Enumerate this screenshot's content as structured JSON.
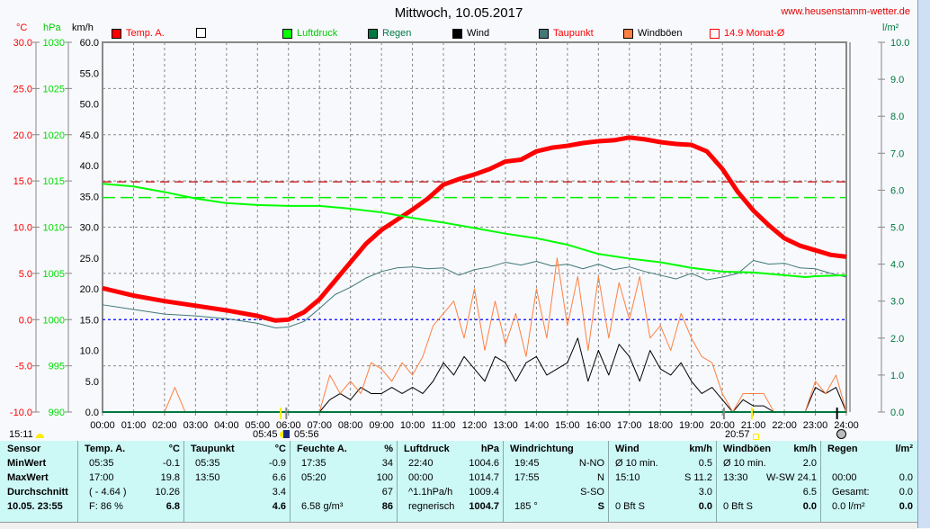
{
  "header": {
    "title": "Mittwoch, 10.05.2017",
    "site": "www.heusenstamm-wetter.de"
  },
  "units": {
    "temp": "°C",
    "pressure": "hPa",
    "wind": "km/h",
    "rain": "l/m²"
  },
  "legend": [
    {
      "label": "Temp. A.",
      "color": "#ff0000",
      "text_color": "#ff0000"
    },
    {
      "label": "",
      "color": "#ffffff",
      "text_color": "#000000"
    },
    {
      "label": "Luftdruck",
      "color": "#00ff00",
      "text_color": "#00cc00"
    },
    {
      "label": "Regen",
      "color": "#007840",
      "text_color": "#007840"
    },
    {
      "label": "Wind",
      "color": "#000000",
      "text_color": "#000000"
    },
    {
      "label": "Taupunkt",
      "color": "#407878",
      "text_color": "#ff0000"
    },
    {
      "label": "Windböen",
      "color": "#ff8040",
      "text_color": "#000000"
    },
    {
      "label": "14.9 Monat-Ø",
      "color": "#ff0000",
      "text_color": "#ff0000"
    }
  ],
  "chart_data": {
    "type": "line",
    "x_ticks": [
      "00:00",
      "01:00",
      "02:00",
      "03:00",
      "04:00",
      "05:00",
      "06:00",
      "07:00",
      "08:00",
      "09:00",
      "10:00",
      "11:00",
      "12:00",
      "13:00",
      "14:00",
      "15:00",
      "16:00",
      "17:00",
      "18:00",
      "19:00",
      "20:00",
      "21:00",
      "22:00",
      "23:00",
      "24:00"
    ],
    "temp_ticks": [
      "30.0",
      "25.0",
      "20.0",
      "15.0",
      "10.0",
      "5.0",
      "0.0",
      "-5.0",
      "-10.0"
    ],
    "pressure_ticks": [
      "1030",
      "1025",
      "1020",
      "1015",
      "1010",
      "1005",
      "1000",
      "995",
      "990"
    ],
    "wind_ticks": [
      "60.0",
      "55.0",
      "50.0",
      "45.0",
      "40.0",
      "35.0",
      "30.0",
      "25.0",
      "20.0",
      "15.0",
      "10.0",
      "5.0",
      "0.0"
    ],
    "rain_ticks": [
      "10.0",
      "9.0",
      "8.0",
      "7.0",
      "6.0",
      "5.0",
      "4.0",
      "3.0",
      "2.0",
      "1.0",
      "0.0"
    ],
    "ylim_temp": [
      -10,
      30
    ],
    "ylim_pressure": [
      990,
      1030
    ],
    "ylim_wind": [
      0,
      60
    ],
    "ylim_rain": [
      0,
      10
    ],
    "grid": true,
    "monthly_avg_temp": 14.9,
    "pressure_reference": 1013.2,
    "series": [
      {
        "name": "Temp. A.",
        "color": "#ff0000",
        "x": [
          0,
          1,
          2,
          3,
          4,
          5,
          5.58,
          6,
          6.5,
          7,
          7.5,
          8,
          8.5,
          9,
          9.5,
          10,
          10.5,
          11,
          11.5,
          12,
          12.5,
          13,
          13.5,
          14,
          14.5,
          15,
          15.5,
          16,
          16.5,
          17,
          17.5,
          18,
          18.5,
          19,
          19.5,
          20,
          20.5,
          21,
          21.5,
          22,
          22.5,
          23,
          23.5,
          24
        ],
        "y": [
          3.4,
          2.6,
          2.0,
          1.5,
          1.0,
          0.4,
          -0.1,
          0.0,
          0.8,
          2.2,
          4.2,
          6.2,
          8.2,
          9.7,
          10.8,
          11.9,
          13.1,
          14.6,
          15.2,
          15.7,
          16.3,
          17.1,
          17.3,
          18.2,
          18.6,
          18.8,
          19.1,
          19.3,
          19.4,
          19.7,
          19.5,
          19.2,
          19.0,
          18.9,
          18.2,
          16.3,
          13.8,
          11.8,
          10.2,
          8.8,
          8.0,
          7.5,
          7.0,
          6.8
        ]
      },
      {
        "name": "Taupunkt",
        "color": "#407878",
        "x": [
          0,
          1,
          2,
          3,
          4,
          5,
          5.58,
          6,
          6.5,
          7,
          7.5,
          8,
          8.5,
          9,
          9.5,
          10,
          10.5,
          11,
          11.5,
          12,
          12.5,
          13,
          13.5,
          14,
          14.5,
          15,
          15.5,
          16,
          16.5,
          17,
          17.5,
          18,
          18.5,
          19,
          19.5,
          20,
          20.5,
          21,
          21.5,
          22,
          22.5,
          23,
          23.5,
          24
        ],
        "y": [
          1.6,
          1.1,
          0.6,
          0.4,
          0.1,
          -0.4,
          -0.9,
          -0.8,
          -0.2,
          1.2,
          2.7,
          3.5,
          4.5,
          5.2,
          5.6,
          5.7,
          5.5,
          5.6,
          4.8,
          5.4,
          5.7,
          6.2,
          5.9,
          6.3,
          5.8,
          6.0,
          5.5,
          6.0,
          5.4,
          5.7,
          5.2,
          4.8,
          4.4,
          5.0,
          4.3,
          4.6,
          5.0,
          6.4,
          6.0,
          6.1,
          5.6,
          5.5,
          5.0,
          4.6
        ]
      },
      {
        "name": "Luftdruck",
        "color": "#00ff00",
        "x": [
          0,
          1,
          2,
          3,
          4,
          5,
          6,
          7,
          8,
          9,
          10,
          11,
          12,
          13,
          14,
          15,
          16,
          17,
          18,
          19,
          20,
          21,
          22,
          22.67,
          23,
          24
        ],
        "y": [
          1014.7,
          1014.4,
          1013.8,
          1013.1,
          1012.6,
          1012.4,
          1012.3,
          1012.3,
          1012.0,
          1011.6,
          1011.0,
          1010.5,
          1009.9,
          1009.3,
          1008.8,
          1008.1,
          1007.1,
          1006.6,
          1006.2,
          1005.6,
          1005.2,
          1005.1,
          1004.8,
          1004.6,
          1004.7,
          1004.8
        ]
      },
      {
        "name": "Wind",
        "color": "#000000",
        "step_minutes": 20,
        "y": [
          0,
          0,
          0,
          0,
          0,
          0,
          0,
          0,
          0,
          0,
          0,
          0,
          0,
          0,
          0,
          0,
          0,
          0,
          0,
          0,
          0,
          0,
          2,
          3,
          2,
          4,
          3,
          3,
          4,
          3,
          4,
          3,
          5,
          8,
          6,
          9,
          7,
          5,
          9,
          8,
          5,
          8,
          9,
          6,
          7,
          8,
          12,
          5,
          10,
          6,
          11,
          9,
          5,
          10,
          7,
          6,
          8,
          5,
          3,
          4,
          2,
          0,
          2,
          1,
          1,
          0,
          0,
          0,
          0,
          4,
          3,
          4,
          0
        ]
      },
      {
        "name": "Windböen",
        "color": "#ff8040",
        "step_minutes": 20,
        "y": [
          0,
          0,
          0,
          0,
          0,
          0,
          0,
          4,
          0,
          0,
          0,
          0,
          0,
          0,
          0,
          0,
          0,
          0,
          0,
          0,
          0,
          0,
          6,
          3,
          5,
          3,
          8,
          7,
          5,
          8,
          6,
          9,
          14,
          16,
          18,
          12,
          20,
          10,
          18,
          11,
          16,
          9,
          20,
          12,
          25,
          14,
          22,
          10,
          22,
          12,
          21,
          15,
          22,
          12,
          14,
          10,
          16,
          12,
          9,
          8,
          3,
          0,
          3,
          3,
          3,
          0,
          0,
          0,
          0,
          5,
          3,
          6,
          0
        ]
      },
      {
        "name": "Regen",
        "color": "#007840",
        "x": [
          0,
          24
        ],
        "y": [
          0,
          0
        ]
      }
    ]
  },
  "markers": {
    "left_time": "15:11",
    "sunrise": "05:45",
    "sunset_marker": "05:56",
    "sunset": "20:57"
  },
  "table": {
    "columns": [
      {
        "head": "Sensor",
        "unit": "",
        "rows": [
          [
            "MinWert",
            ""
          ],
          [
            "MaxWert",
            ""
          ],
          [
            "Durchschnitt",
            ""
          ],
          [
            "10.05. 23:55",
            ""
          ]
        ]
      },
      {
        "head": "Temp. A.",
        "unit": "°C",
        "rows": [
          [
            "05:35",
            "-0.1"
          ],
          [
            "17:00",
            "19.8"
          ],
          [
            "( - 4.64 )",
            "10.26"
          ],
          [
            "F: 86 %",
            "6.8"
          ]
        ]
      },
      {
        "head": "Taupunkt",
        "unit": "°C",
        "rows": [
          [
            "05:35",
            "-0.9"
          ],
          [
            "13:50",
            "6.6"
          ],
          [
            "",
            "3.4"
          ],
          [
            "",
            "4.6"
          ]
        ]
      },
      {
        "head": "Feuchte A.",
        "unit": "%",
        "rows": [
          [
            "17:35",
            "34"
          ],
          [
            "05:20",
            "100"
          ],
          [
            "",
            "67"
          ],
          [
            "6.58 g/m³",
            "86"
          ]
        ]
      },
      {
        "head": "Luftdruck",
        "unit": "hPa",
        "rows": [
          [
            "22:40",
            "1004.6"
          ],
          [
            "00:00",
            "1014.7"
          ],
          [
            "^1.1hPa/h",
            "1009.4"
          ],
          [
            "regnerisch",
            "1004.7"
          ]
        ]
      },
      {
        "head": "Windrichtung",
        "unit": "",
        "rows": [
          [
            "19:45",
            "N-NO"
          ],
          [
            "17:55",
            "N"
          ],
          [
            "",
            "S-SO"
          ],
          [
            "185 °",
            "S"
          ]
        ]
      },
      {
        "head": "Wind",
        "unit": "km/h",
        "rows": [
          [
            "Ø 10 min.",
            "0.5"
          ],
          [
            "15:10",
            "S 11.2"
          ],
          [
            "",
            "3.0"
          ],
          [
            "0 Bft S",
            "0.0"
          ]
        ]
      },
      {
        "head": "Windböen",
        "unit": "km/h",
        "rows": [
          [
            "Ø 10 min.",
            "2.0"
          ],
          [
            "13:30",
            "W-SW 24.1"
          ],
          [
            "",
            "6.5"
          ],
          [
            "0 Bft S",
            "0.0"
          ]
        ]
      },
      {
        "head": "Regen",
        "unit": "l/m²",
        "rows": [
          [
            "",
            ""
          ],
          [
            "00:00",
            "0.0"
          ],
          [
            "Gesamt:",
            "0.0"
          ],
          [
            "0.0 l/m²",
            "0.0"
          ]
        ]
      }
    ]
  }
}
